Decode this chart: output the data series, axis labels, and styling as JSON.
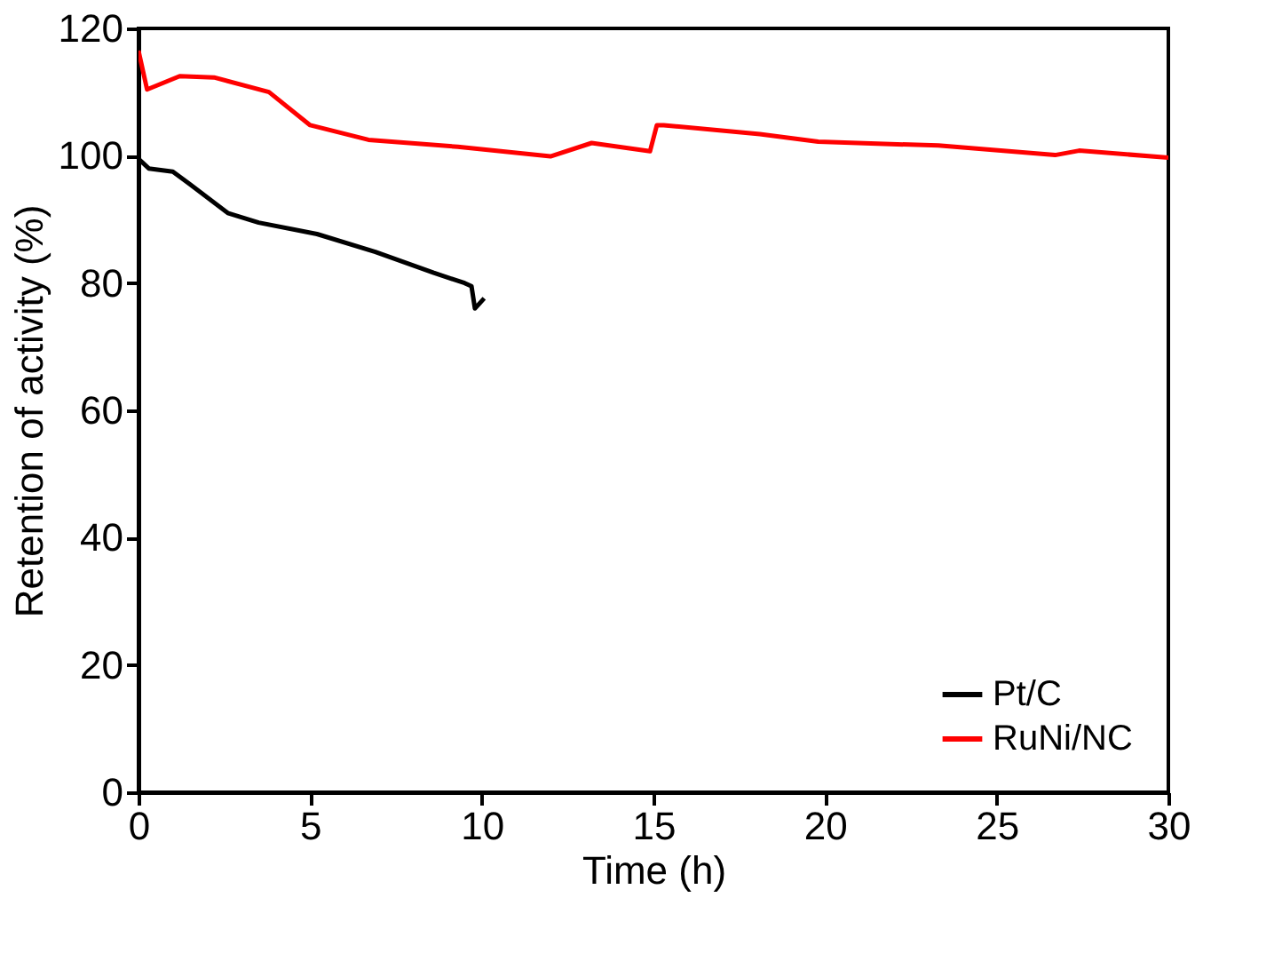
{
  "chart_data": {
    "type": "line",
    "xlabel": "Time (h)",
    "ylabel": "Retention of activity (%)",
    "xlim": [
      0,
      30
    ],
    "xticks": [
      0,
      5,
      10,
      15,
      20,
      25,
      30
    ],
    "ylim": [
      0,
      120
    ],
    "yticks": [
      0,
      20,
      40,
      60,
      80,
      100,
      120
    ],
    "grid": false,
    "legend": "bottom right",
    "line_style": "solid",
    "series": [
      {
        "name": "Pt/C",
        "color": "#000000",
        "x": [
          0,
          0.3,
          1,
          1.5,
          2.6,
          3.5,
          5.2,
          6.9,
          8.6,
          9.5,
          9.7,
          9.8,
          10.07
        ],
        "values": [
          99.5,
          98,
          97.5,
          95.5,
          91,
          89.5,
          87.7,
          84.9,
          81.6,
          80,
          79.5,
          76,
          77.6
        ]
      },
      {
        "name": "RuNi/NC",
        "color": "#ff0000",
        "x": [
          0,
          0.25,
          1.2,
          2.2,
          3.8,
          5,
          6.7,
          9.3,
          12,
          13.2,
          14.9,
          15.1,
          15.3,
          18.1,
          19.8,
          23.3,
          26.7,
          27.4,
          30
        ],
        "values": [
          116.5,
          110.4,
          112.5,
          112.3,
          110,
          104.8,
          102.5,
          101.4,
          99.9,
          102,
          100.7,
          104.8,
          104.8,
          103.4,
          102.2,
          101.6,
          100.1,
          100.8,
          99.7
        ]
      }
    ]
  }
}
